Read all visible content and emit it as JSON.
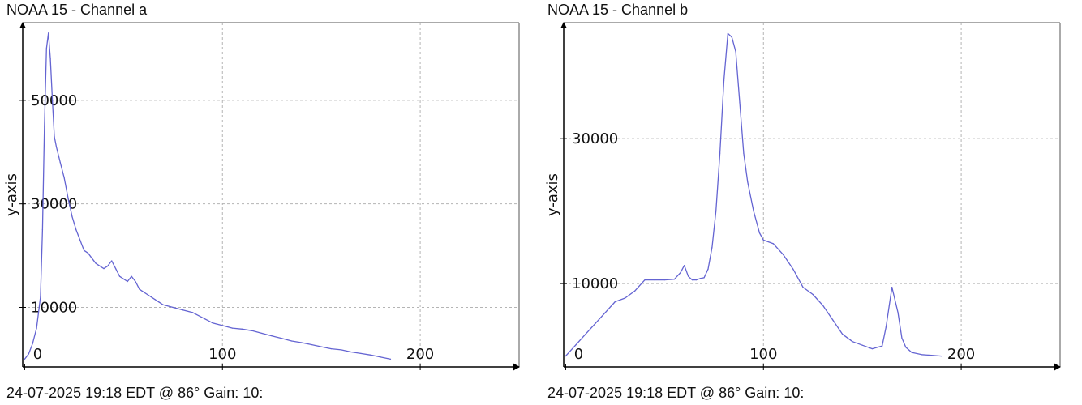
{
  "chart_data": [
    {
      "type": "line",
      "title": "NOAA 15 - Channel a",
      "ylabel": "y-axis",
      "footer": "24-07-2025 19:18 EDT @ 86° Gain: 10:",
      "xlim": [
        -1,
        250
      ],
      "ylim": [
        -1500,
        65000
      ],
      "xticks": [
        0,
        100,
        200
      ],
      "yticks": [
        10000,
        30000,
        50000
      ],
      "grid": true,
      "series_color": "#6464d2",
      "series": [
        {
          "x": [
            0,
            2,
            4,
            6,
            8,
            9,
            10,
            11,
            12,
            13,
            14,
            15,
            16,
            18,
            20,
            22,
            24,
            26,
            28,
            30,
            32,
            34,
            36,
            38,
            40,
            42,
            44,
            46,
            48,
            50,
            52,
            54,
            56,
            58,
            60,
            62,
            64,
            66,
            68,
            70,
            75,
            80,
            85,
            90,
            95,
            100,
            105,
            110,
            115,
            120,
            125,
            130,
            135,
            140,
            145,
            150,
            155,
            160,
            165,
            170,
            175,
            180,
            185
          ],
          "values": [
            0,
            1000,
            3000,
            6000,
            12000,
            25000,
            45000,
            60000,
            63000,
            58000,
            50000,
            43000,
            41000,
            38000,
            35000,
            31000,
            27500,
            25000,
            23000,
            21000,
            20500,
            19500,
            18500,
            18000,
            17500,
            18000,
            19000,
            17500,
            16000,
            15500,
            15000,
            16000,
            15000,
            13500,
            13000,
            12500,
            12000,
            11500,
            11000,
            10500,
            10000,
            9500,
            9000,
            8000,
            7000,
            6500,
            6000,
            5800,
            5500,
            5000,
            4500,
            4000,
            3500,
            3200,
            2800,
            2400,
            2000,
            1800,
            1400,
            1100,
            800,
            400,
            0
          ]
        }
      ]
    },
    {
      "type": "line",
      "title": "NOAA 15 - Channel b",
      "ylabel": "y-axis",
      "footer": "24-07-2025 19:18 EDT @ 86° Gain: 10:",
      "xlim": [
        -1,
        250
      ],
      "ylim": [
        -1500,
        46000
      ],
      "xticks": [
        0,
        100,
        200
      ],
      "yticks": [
        10000,
        30000
      ],
      "grid": true,
      "series_color": "#6464d2",
      "series": [
        {
          "x": [
            0,
            5,
            10,
            15,
            20,
            25,
            30,
            35,
            40,
            45,
            50,
            55,
            58,
            60,
            62,
            64,
            66,
            68,
            70,
            72,
            74,
            76,
            78,
            80,
            82,
            84,
            86,
            88,
            90,
            92,
            95,
            98,
            100,
            105,
            110,
            115,
            120,
            125,
            130,
            135,
            140,
            145,
            150,
            155,
            160,
            162,
            165,
            168,
            170,
            172,
            175,
            180,
            185,
            190
          ],
          "values": [
            0,
            1500,
            3000,
            4500,
            6000,
            7500,
            8000,
            9000,
            10500,
            10500,
            10500,
            10600,
            11500,
            12500,
            11000,
            10500,
            10500,
            10700,
            10800,
            12000,
            15000,
            20000,
            28000,
            38000,
            44500,
            44000,
            42000,
            35000,
            28000,
            24000,
            20000,
            17000,
            16000,
            15500,
            14000,
            12000,
            9500,
            8500,
            7000,
            5000,
            3000,
            2000,
            1500,
            1000,
            1400,
            4000,
            9500,
            6000,
            2500,
            1200,
            500,
            200,
            100,
            0
          ]
        }
      ]
    }
  ]
}
